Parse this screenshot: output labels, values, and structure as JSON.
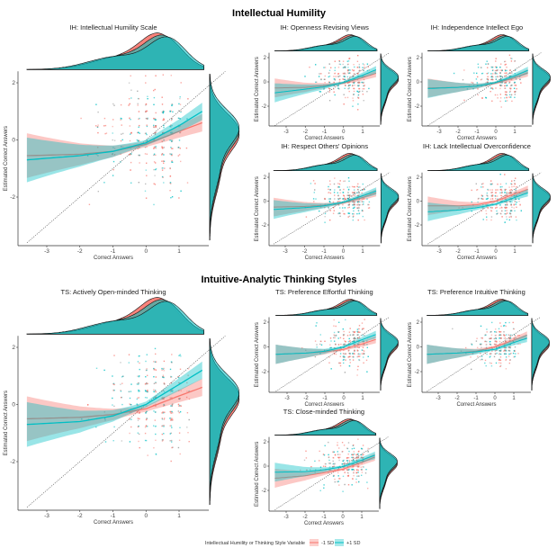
{
  "chart_data": {
    "type": "scatter",
    "colors": {
      "minus_1sd": "#F8766D",
      "plus_1sd": "#00BFC4",
      "overlap": "#5FA9A3"
    },
    "section_titles": [
      "Intellectual Humility",
      "Intuitive-Analytic Thinking Styles"
    ],
    "xlabel": "Correct Answers",
    "ylabel": "Estimated Correct Answers",
    "xlim": [
      -3.75,
      1.9
    ],
    "ylim": [
      -3.6,
      2.4
    ],
    "x_ticks": [
      "-3",
      "-2",
      "-1",
      "0",
      "1"
    ],
    "y_ticks": [
      "2",
      "0",
      "-2"
    ],
    "fit_x": [
      -3.6,
      -2,
      -1,
      0,
      1,
      1.7
    ],
    "legend": {
      "title": "Intellectual Humility or Thinking Style Variable",
      "labels": [
        "-1 SD",
        "+1 SD"
      ],
      "placement": "bottom"
    },
    "panels": [
      {
        "title": "IH: Intellectual Humility Scale",
        "minus_1sd": [
          -0.55,
          -0.5,
          -0.4,
          -0.15,
          0.3,
          0.6
        ],
        "plus_1sd": [
          -0.7,
          -0.55,
          -0.4,
          -0.1,
          0.5,
          1.0
        ]
      },
      {
        "title": "IH: Openness Revising Views",
        "minus_1sd": [
          -0.5,
          -0.45,
          -0.3,
          -0.1,
          0.35,
          0.7
        ],
        "plus_1sd": [
          -0.9,
          -0.6,
          -0.4,
          -0.05,
          0.55,
          1.0
        ]
      },
      {
        "title": "IH: Independence Intellect Ego",
        "minus_1sd": [
          -0.5,
          -0.45,
          -0.35,
          -0.1,
          0.35,
          0.75
        ],
        "plus_1sd": [
          -0.55,
          -0.45,
          -0.35,
          -0.05,
          0.5,
          0.95
        ]
      },
      {
        "title": "IH: Respect Others' Opinions",
        "minus_1sd": [
          -0.5,
          -0.45,
          -0.35,
          -0.15,
          0.3,
          0.7
        ],
        "plus_1sd": [
          -0.7,
          -0.55,
          -0.4,
          -0.1,
          0.45,
          0.85
        ]
      },
      {
        "title": "IH: Lack Intellectual Overconfidence",
        "minus_1sd": [
          -0.4,
          -0.4,
          -0.3,
          0.0,
          0.6,
          1.0
        ],
        "plus_1sd": [
          -0.9,
          -0.75,
          -0.55,
          -0.25,
          0.3,
          0.7
        ]
      },
      {
        "title": "TS: Actively Open-minded Thinking",
        "minus_1sd": [
          -0.5,
          -0.45,
          -0.35,
          -0.15,
          0.3,
          0.6
        ],
        "plus_1sd": [
          -0.7,
          -0.6,
          -0.4,
          0.0,
          0.7,
          1.2
        ]
      },
      {
        "title": "TS: Preference Effortful Thinking",
        "minus_1sd": [
          -0.6,
          -0.5,
          -0.4,
          -0.2,
          0.25,
          0.6
        ],
        "plus_1sd": [
          -0.6,
          -0.5,
          -0.35,
          0.0,
          0.6,
          1.0
        ]
      },
      {
        "title": "TS: Preference Intuitive Thinking",
        "minus_1sd": [
          -0.6,
          -0.5,
          -0.35,
          0.0,
          0.55,
          0.95
        ],
        "plus_1sd": [
          -0.6,
          -0.5,
          -0.4,
          -0.2,
          0.35,
          0.7
        ]
      },
      {
        "title": "TS: Close-minded Thinking",
        "minus_1sd": [
          -1.0,
          -0.8,
          -0.55,
          -0.25,
          0.3,
          0.75
        ],
        "plus_1sd": [
          -0.5,
          -0.45,
          -0.3,
          -0.05,
          0.5,
          0.9
        ]
      }
    ]
  }
}
